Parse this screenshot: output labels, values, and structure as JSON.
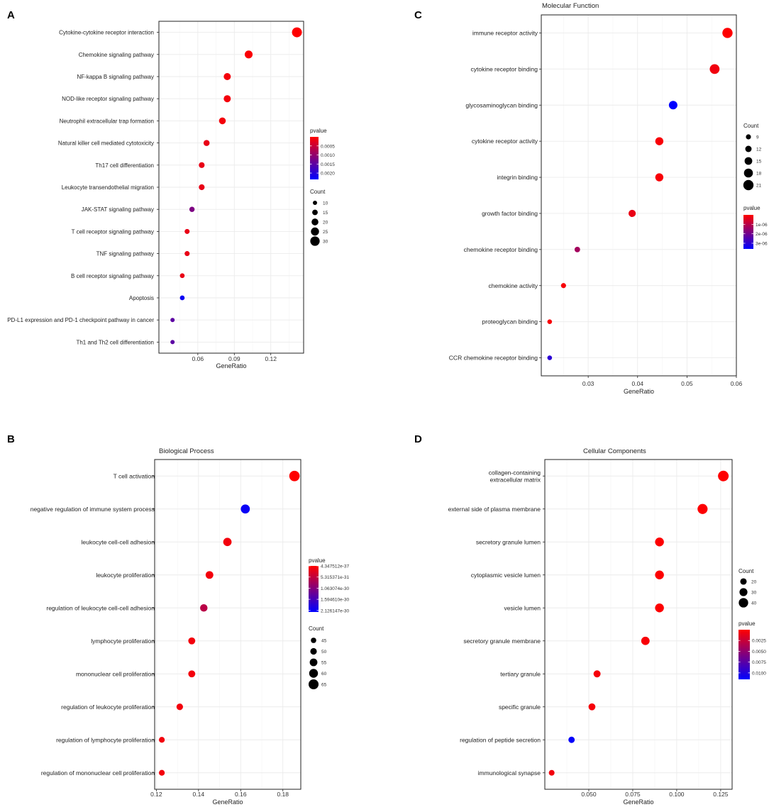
{
  "figure": {
    "colors": {
      "low_p": "#ff0000",
      "high_p": "#0000ff",
      "grid": "#ebebeb",
      "frame": "#222222"
    },
    "size_title": "Count",
    "color_title": "pvalue",
    "x_label": "GeneRatio"
  },
  "chart_data": [
    {
      "id": "A",
      "panel_letter": "A",
      "type": "scatter",
      "title": "",
      "xlabel": "GeneRatio",
      "ylabel": "",
      "xlim": [
        0.028,
        0.147
      ],
      "xticks": [
        0.06,
        0.09,
        0.12
      ],
      "xtick_labels": [
        "0.06",
        "0.09",
        "0.12"
      ],
      "size_range": [
        10,
        32
      ],
      "size_legend": {
        "title": "Count",
        "values": [
          10,
          15,
          20,
          25,
          30
        ],
        "labels": [
          "10",
          "15",
          "20",
          "25",
          "30"
        ]
      },
      "color_range": [
        0.0,
        0.00235
      ],
      "color_legend": {
        "title": "pvalue",
        "values": [
          0.0005,
          0.001,
          0.0015,
          0.002
        ],
        "labels": [
          "0.0005",
          "0.0010",
          "0.0015",
          "0.0020"
        ]
      },
      "categories": [
        "Cytokine-cytokine receptor interaction",
        "Chemokine signaling pathway",
        "NF-kappa B signaling pathway",
        "NOD-like receptor signaling pathway",
        "Neutrophil extracellular trap formation",
        "Natural killer cell mediated cytotoxicity",
        "Th17 cell differentiation",
        "Leukocyte transendothelial migration",
        "JAK-STAT signaling pathway",
        "T cell receptor signaling pathway",
        "TNF signaling pathway",
        "B cell receptor signaling pathway",
        "Apoptosis",
        "PD-L1 expression and PD-1 checkpoint pathway in cancer",
        "Th1 and Th2 cell differentiation"
      ],
      "x": [
        0.1415,
        0.1018,
        0.0842,
        0.0842,
        0.0802,
        0.0672,
        0.0632,
        0.0632,
        0.0552,
        0.0512,
        0.0512,
        0.0472,
        0.0472,
        0.0392,
        0.0392
      ],
      "count": [
        32,
        24,
        21,
        21,
        20,
        17,
        16,
        16,
        14,
        13,
        13,
        12,
        12,
        10,
        10
      ],
      "pvalue": [
        1e-05,
        5e-05,
        0.0001,
        0.0001,
        0.0001,
        0.0002,
        0.0002,
        0.0002,
        0.0012,
        0.0002,
        0.0002,
        0.0002,
        0.00225,
        0.0015,
        0.0015
      ]
    },
    {
      "id": "B",
      "panel_letter": "B",
      "type": "scatter",
      "title": "Biological Process",
      "xlabel": "GeneRatio",
      "ylabel": "",
      "xlim": [
        0.1192,
        0.1885
      ],
      "xticks": [
        0.12,
        0.14,
        0.16,
        0.18
      ],
      "xtick_labels": [
        "0.12",
        "0.14",
        "0.16",
        "0.18"
      ],
      "size_range": [
        40,
        68
      ],
      "size_legend": {
        "title": "Count",
        "values": [
          45,
          50,
          55,
          60,
          65
        ],
        "labels": [
          "45",
          "50",
          "55",
          "60",
          "65"
        ]
      },
      "color_range": [
        0.0,
        2.2e-30
      ],
      "color_legend": {
        "title": "pvalue",
        "values": [
          4.347512e-37,
          5.315371e-31,
          1.063074e-30,
          1.59461e-30,
          2.126147e-30
        ],
        "labels": [
          "4.347512e-37",
          "5.315371e-31",
          "1.063074e-30",
          "1.594610e-30",
          "2.126147e-30"
        ]
      },
      "categories": [
        "T cell activation",
        "negative regulation of immune system process",
        "leukocyte cell-cell adhesion",
        "leukocyte proliferation",
        "regulation of leukocyte cell-cell adhesion",
        "lymphocyte proliferation",
        "mononuclear cell proliferation",
        "regulation of leukocyte proliferation",
        "regulation of lymphocyte proliferation",
        "regulation of mononuclear cell proliferation"
      ],
      "x": [
        0.1855,
        0.1622,
        0.1537,
        0.1452,
        0.1425,
        0.1368,
        0.1368,
        0.1311,
        0.1226,
        0.1226
      ],
      "count": [
        67,
        61,
        58,
        55,
        54,
        52,
        52,
        50,
        47,
        47
      ],
      "pvalue": [
        4.3e-37,
        2.126e-30,
        1e-31,
        1e-31,
        6e-31,
        1e-31,
        1e-31,
        1e-31,
        1e-31,
        1e-31
      ]
    },
    {
      "id": "C",
      "panel_letter": "C",
      "type": "scatter",
      "title": "Molecular Function",
      "xlabel": "GeneRatio",
      "ylabel": "",
      "xlim": [
        0.0205,
        0.06
      ],
      "xticks": [
        0.03,
        0.04,
        0.05,
        0.06
      ],
      "xtick_labels": [
        "0.03",
        "0.04",
        "0.05",
        "0.06"
      ],
      "size_range": [
        7,
        22
      ],
      "size_legend": {
        "title": "Count",
        "values": [
          9,
          12,
          15,
          18,
          21
        ],
        "labels": [
          "9",
          "12",
          "15",
          "18",
          "21"
        ]
      },
      "color_range": [
        0.0,
        3.6e-06
      ],
      "color_legend": {
        "title": "pvalue",
        "values": [
          1e-06,
          2e-06,
          3e-06
        ],
        "labels": [
          "1e-06",
          "2e-06",
          "3e-06"
        ]
      },
      "categories": [
        "immune receptor activity",
        "cytokine receptor binding",
        "glycosaminoglycan binding",
        "cytokine receptor activity",
        "integrin binding",
        "growth factor binding",
        "chemokine receptor binding",
        "chemokine activity",
        "proteoglycan binding",
        "CCR chemokine receptor binding"
      ],
      "x": [
        0.0582,
        0.0556,
        0.0472,
        0.0444,
        0.0444,
        0.0389,
        0.0278,
        0.025,
        0.0222,
        0.0222
      ],
      "count": [
        21,
        20,
        17,
        16,
        16,
        14,
        10,
        9,
        8,
        8
      ],
      "pvalue": [
        1e-08,
        2e-07,
        3.6e-06,
        1e-07,
        1e-07,
        3e-07,
        1.3e-06,
        1e-07,
        1e-07,
        3e-06
      ]
    },
    {
      "id": "D",
      "panel_letter": "D",
      "type": "scatter",
      "title": "Cellular Components",
      "xlabel": "GeneRatio",
      "ylabel": "",
      "xlim": [
        0.025,
        0.1315
      ],
      "xticks": [
        0.05,
        0.075,
        0.1,
        0.125
      ],
      "xtick_labels": [
        "0.050",
        "0.075",
        "0.100",
        "0.125"
      ],
      "size_range": [
        10,
        48
      ],
      "size_legend": {
        "title": "Count",
        "values": [
          20,
          30,
          40
        ],
        "labels": [
          "20",
          "30",
          "40"
        ]
      },
      "color_range": [
        0.0,
        0.0115
      ],
      "color_legend": {
        "title": "pvalue",
        "values": [
          0.0025,
          0.005,
          0.0075,
          0.01
        ],
        "labels": [
          "0.0025",
          "0.0050",
          "0.0075",
          "0.0100"
        ]
      },
      "categories": [
        "collagen-containing\nextracellular matrix",
        "external side of plasma membrane",
        "secretory granule lumen",
        "cytoplasmic vesicle lumen",
        "vesicle lumen",
        "secretory granule membrane",
        "tertiary granule",
        "specific granule",
        "regulation of peptide secretion",
        "immunological synapse"
      ],
      "x": [
        0.1265,
        0.1147,
        0.0902,
        0.0902,
        0.0902,
        0.0822,
        0.0547,
        0.0518,
        0.0402,
        0.0289
      ],
      "count": [
        48,
        44,
        36,
        36,
        36,
        33,
        24,
        23,
        19,
        15
      ],
      "pvalue": [
        5e-05,
        0.0001,
        0.0001,
        0.0001,
        0.0001,
        0.0003,
        0.0004,
        0.0004,
        0.0113,
        0.0006
      ]
    }
  ]
}
